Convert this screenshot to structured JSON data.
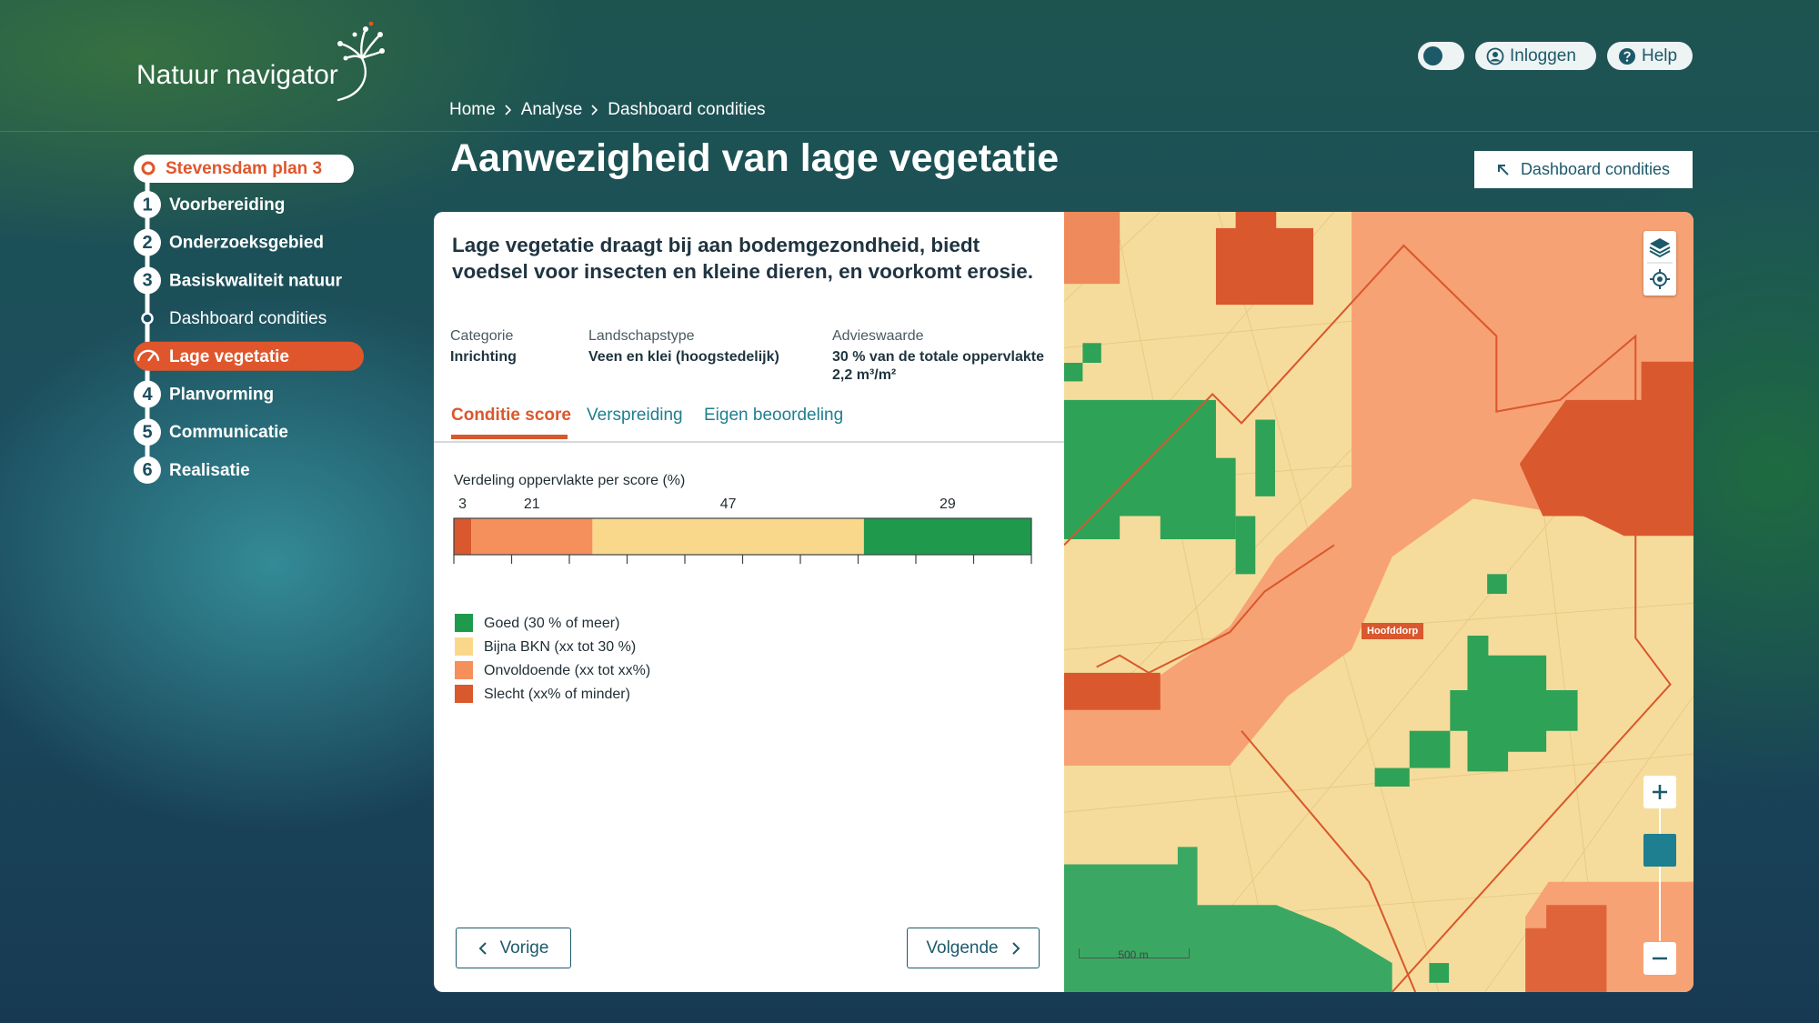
{
  "header": {
    "logo": "Natuur navigator",
    "login": "Inloggen",
    "help": "Help"
  },
  "breadcrumb": [
    "Home",
    "Analyse",
    "Dashboard condities"
  ],
  "sidebar": {
    "project": "Stevensdam plan 3",
    "items": [
      {
        "number": 1,
        "label": "Voorbereiding"
      },
      {
        "number": 2,
        "label": "Onderzoeksgebied"
      },
      {
        "number": 3,
        "label": "Basiskwaliteit natuur"
      },
      {
        "label": "Dashboard condities"
      },
      {
        "label": "Lage vegetatie",
        "active": true
      },
      {
        "number": 4,
        "label": "Planvorming"
      },
      {
        "number": 5,
        "label": "Communicatie"
      },
      {
        "number": 6,
        "label": "Realisatie"
      }
    ]
  },
  "page": {
    "title": "Aanwezigheid van lage vegetatie",
    "back_button": "Dashboard condities"
  },
  "card": {
    "intro": "Lage vegetatie draagt bij aan bodemgezondheid, biedt voedsel voor insecten en kleine dieren, en voorkomt erosie.",
    "meta": [
      {
        "label": "Categorie",
        "values": [
          "Inrichting"
        ]
      },
      {
        "label": "Landschapstype",
        "values": [
          "Veen en klei (hoogstedelijk)"
        ]
      },
      {
        "label": "Advieswaarde",
        "values": [
          "30 % van de totale oppervlakte",
          "2,2 m³/m²"
        ]
      }
    ],
    "tabs": [
      {
        "label": "Conditie score",
        "active": true
      },
      {
        "label": "Verspreiding"
      },
      {
        "label": "Eigen beoordeling"
      }
    ],
    "distribution": {
      "title": "Verdeling oppervlakte per score (%)",
      "xlim": [
        0,
        100
      ],
      "xticks": [
        0,
        10,
        20,
        30,
        40,
        50,
        60,
        70,
        80,
        90,
        100
      ],
      "segments": [
        {
          "value": 3,
          "color": "#d9582d"
        },
        {
          "value": 21,
          "color": "#f58f5c"
        },
        {
          "value": 47,
          "color": "#fad88b"
        },
        {
          "value": 29,
          "color": "#1f9a4c"
        }
      ]
    },
    "legend": [
      {
        "label": "Goed (30 % of meer)",
        "color": "#1f9a4c"
      },
      {
        "label": "Bijna BKN (xx tot 30 %)",
        "color": "#fad88b"
      },
      {
        "label": "Onvoldoende (xx tot xx%)",
        "color": "#f58f5c"
      },
      {
        "label": "Slecht (xx% of minder)",
        "color": "#d9582d"
      }
    ],
    "nav": {
      "previous": "Vorige",
      "next": "Volgende"
    }
  },
  "map": {
    "place_label": "Hoofddorp",
    "scale": "500 m"
  }
}
